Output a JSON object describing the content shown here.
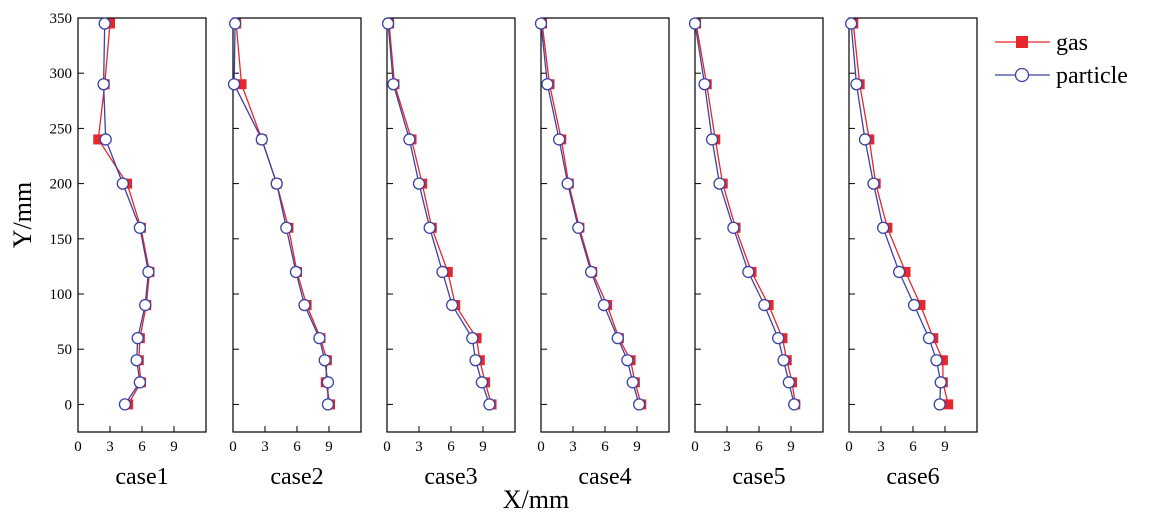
{
  "chart_data": {
    "type": "line",
    "ylabel": "Y/mm",
    "xlabel": "X/mm",
    "xlim": [
      0,
      12
    ],
    "ylim": [
      -25,
      350
    ],
    "xticks": [
      0,
      3,
      6,
      9
    ],
    "yticks": [
      0,
      50,
      100,
      150,
      200,
      250,
      300,
      350
    ],
    "grid": false,
    "legend": {
      "placement": "top-right, outside",
      "entries": [
        {
          "label": "gas",
          "marker": "filled-square",
          "color": "#e8262b"
        },
        {
          "label": "particle",
          "marker": "open-circle",
          "color": "#3a43a4"
        }
      ]
    },
    "y": [
      345,
      290,
      240,
      200,
      160,
      120,
      90,
      60,
      40,
      20,
      0
    ],
    "panels": [
      {
        "label": "case1",
        "gas": [
          3.0,
          2.5,
          1.9,
          4.6,
          5.9,
          6.7,
          6.4,
          5.8,
          5.7,
          5.9,
          4.7
        ],
        "particle": [
          2.5,
          2.4,
          2.6,
          4.2,
          5.8,
          6.6,
          6.3,
          5.6,
          5.5,
          5.8,
          4.4
        ]
      },
      {
        "label": "case2",
        "gas": [
          0.3,
          0.8,
          2.7,
          4.1,
          5.2,
          6.0,
          6.9,
          8.2,
          8.8,
          8.7,
          9.1
        ],
        "particle": [
          0.2,
          0.1,
          2.7,
          4.1,
          5.0,
          5.9,
          6.7,
          8.1,
          8.6,
          8.9,
          8.9
        ]
      },
      {
        "label": "case3",
        "gas": [
          0.2,
          0.7,
          2.3,
          3.3,
          4.2,
          5.7,
          6.4,
          8.4,
          8.7,
          9.2,
          9.8
        ],
        "particle": [
          0.1,
          0.6,
          2.1,
          3.0,
          4.0,
          5.2,
          6.1,
          8.0,
          8.3,
          8.9,
          9.6
        ]
      },
      {
        "label": "case4",
        "gas": [
          0.1,
          0.8,
          1.9,
          2.6,
          3.6,
          4.8,
          6.2,
          7.3,
          8.4,
          8.8,
          9.4
        ],
        "particle": [
          0.0,
          0.6,
          1.7,
          2.5,
          3.5,
          4.7,
          5.9,
          7.2,
          8.1,
          8.6,
          9.2
        ]
      },
      {
        "label": "case5",
        "gas": [
          0.1,
          1.1,
          1.9,
          2.6,
          3.8,
          5.3,
          6.9,
          8.2,
          8.6,
          9.1,
          9.4
        ],
        "particle": [
          0.0,
          0.9,
          1.6,
          2.3,
          3.6,
          5.0,
          6.5,
          7.8,
          8.3,
          8.8,
          9.3
        ]
      },
      {
        "label": "case6",
        "gas": [
          0.4,
          1.0,
          1.9,
          2.5,
          3.6,
          5.3,
          6.7,
          7.9,
          8.8,
          8.8,
          9.3
        ],
        "particle": [
          0.2,
          0.7,
          1.5,
          2.3,
          3.2,
          4.7,
          6.1,
          7.5,
          8.2,
          8.6,
          8.5
        ]
      }
    ]
  }
}
